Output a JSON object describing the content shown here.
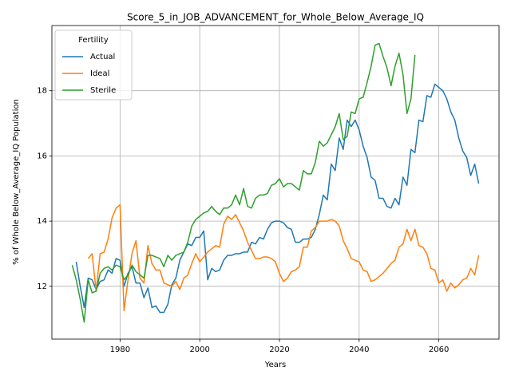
{
  "chart_data": {
    "type": "line",
    "title": "Score_5_in_JOB_ADVANCEMENT_for_Whole_Below_Average_IQ",
    "x_label": "Years",
    "y_label": "% of Whole Below_Average_IQ Population",
    "legend_title": "Fertility",
    "legend": "upper left",
    "grid": true,
    "xlim": [
      1962.9,
      2075.1
    ],
    "ylim": [
      10.38,
      20.0
    ],
    "xticks": [
      1980,
      2000,
      2020,
      2040,
      2060
    ],
    "yticks": [
      12,
      14,
      16,
      18
    ],
    "x": [
      1968,
      1969,
      1970,
      1971,
      1972,
      1973,
      1974,
      1975,
      1976,
      1977,
      1978,
      1979,
      1980,
      1981,
      1982,
      1983,
      1984,
      1985,
      1986,
      1987,
      1988,
      1989,
      1990,
      1991,
      1992,
      1993,
      1994,
      1995,
      1996,
      1997,
      1998,
      1999,
      2000,
      2001,
      2002,
      2003,
      2004,
      2005,
      2006,
      2007,
      2008,
      2009,
      2010,
      2011,
      2012,
      2013,
      2014,
      2015,
      2016,
      2017,
      2018,
      2019,
      2020,
      2021,
      2022,
      2023,
      2024,
      2025,
      2026,
      2027,
      2028,
      2029,
      2030,
      2031,
      2032,
      2033,
      2034,
      2035,
      2036,
      2037,
      2038,
      2039,
      2040,
      2041,
      2042,
      2043,
      2044,
      2045,
      2046,
      2047,
      2048,
      2049,
      2050,
      2051,
      2052,
      2053,
      2054,
      2055,
      2056,
      2057,
      2058,
      2059,
      2060,
      2061,
      2062,
      2063,
      2064,
      2065,
      2066,
      2067,
      2068,
      2069,
      2070
    ],
    "series": [
      {
        "name": "Actual",
        "color": "#1f77b4",
        "values": [
          null,
          12.75,
          12.0,
          11.35,
          12.25,
          12.2,
          11.9,
          12.15,
          12.2,
          12.5,
          12.4,
          12.85,
          12.8,
          12.0,
          12.4,
          12.6,
          12.1,
          12.1,
          11.65,
          11.95,
          11.35,
          11.4,
          11.2,
          11.2,
          11.45,
          12.05,
          12.25,
          12.8,
          13.05,
          13.3,
          13.25,
          13.5,
          13.5,
          13.7,
          12.2,
          12.55,
          12.45,
          12.5,
          12.8,
          12.95,
          12.95,
          13.0,
          13.0,
          13.05,
          13.05,
          13.35,
          13.3,
          13.5,
          13.45,
          13.75,
          13.95,
          14.0,
          14.0,
          13.95,
          13.8,
          13.75,
          13.35,
          13.35,
          13.45,
          13.45,
          13.5,
          13.75,
          14.2,
          14.8,
          14.65,
          15.75,
          15.55,
          16.55,
          16.2,
          17.1,
          16.9,
          17.1,
          16.8,
          16.3,
          15.95,
          15.35,
          15.25,
          14.7,
          14.7,
          14.45,
          14.4,
          14.7,
          14.5,
          15.35,
          15.1,
          16.2,
          16.1,
          17.1,
          17.05,
          17.85,
          17.8,
          18.2,
          18.1,
          18.0,
          17.75,
          17.35,
          17.1,
          16.55,
          16.15,
          15.95,
          15.4,
          15.75,
          15.15
        ]
      },
      {
        "name": "Ideal",
        "color": "#ff7f0e",
        "values": [
          null,
          null,
          null,
          null,
          12.85,
          13.0,
          11.85,
          13.0,
          13.05,
          13.45,
          14.1,
          14.4,
          14.5,
          11.25,
          12.2,
          13.0,
          13.4,
          12.25,
          12.1,
          13.25,
          12.7,
          12.5,
          12.5,
          12.1,
          12.05,
          12.0,
          12.15,
          11.9,
          12.25,
          12.35,
          12.7,
          13.0,
          12.75,
          12.9,
          13.05,
          13.15,
          13.25,
          13.2,
          13.9,
          14.15,
          14.05,
          14.2,
          13.95,
          13.7,
          13.35,
          13.1,
          12.85,
          12.85,
          12.9,
          12.9,
          12.85,
          12.75,
          12.4,
          12.15,
          12.25,
          12.45,
          12.5,
          12.6,
          13.2,
          13.2,
          13.7,
          13.8,
          14.0,
          14.0,
          14.0,
          14.05,
          14.0,
          13.85,
          13.4,
          13.15,
          12.85,
          12.8,
          12.75,
          12.5,
          12.45,
          12.15,
          12.2,
          12.3,
          12.4,
          12.55,
          12.7,
          12.8,
          13.2,
          13.3,
          13.75,
          13.4,
          13.75,
          13.25,
          13.2,
          13.0,
          12.55,
          12.5,
          12.1,
          12.2,
          11.85,
          12.1,
          11.95,
          12.05,
          12.2,
          12.25,
          12.55,
          12.35,
          12.95
        ]
      },
      {
        "name": "Sterile",
        "color": "#2ca02c",
        "values": [
          12.65,
          12.2,
          11.6,
          10.9,
          12.2,
          11.8,
          11.85,
          12.4,
          12.55,
          12.6,
          12.5,
          12.65,
          12.6,
          12.2,
          12.35,
          12.65,
          12.45,
          12.35,
          12.25,
          12.95,
          12.95,
          12.9,
          12.85,
          12.6,
          12.95,
          12.8,
          12.95,
          13.0,
          13.05,
          13.35,
          13.85,
          14.05,
          14.15,
          14.25,
          14.3,
          14.45,
          14.3,
          14.2,
          14.4,
          14.4,
          14.5,
          14.8,
          14.5,
          15.0,
          14.45,
          14.4,
          14.7,
          14.8,
          14.8,
          14.85,
          15.1,
          15.15,
          15.3,
          15.05,
          15.15,
          15.15,
          15.05,
          14.95,
          15.55,
          15.45,
          15.45,
          15.8,
          16.45,
          16.3,
          16.4,
          16.65,
          16.9,
          17.3,
          16.5,
          16.6,
          17.35,
          17.3,
          17.75,
          17.8,
          18.25,
          18.75,
          19.4,
          19.45,
          19.05,
          18.7,
          18.15,
          18.75,
          19.15,
          18.5,
          17.3,
          17.75,
          19.1,
          null,
          null,
          null,
          null,
          null,
          null,
          null,
          null,
          null,
          null,
          null,
          null,
          null,
          null,
          null,
          null
        ]
      }
    ]
  }
}
